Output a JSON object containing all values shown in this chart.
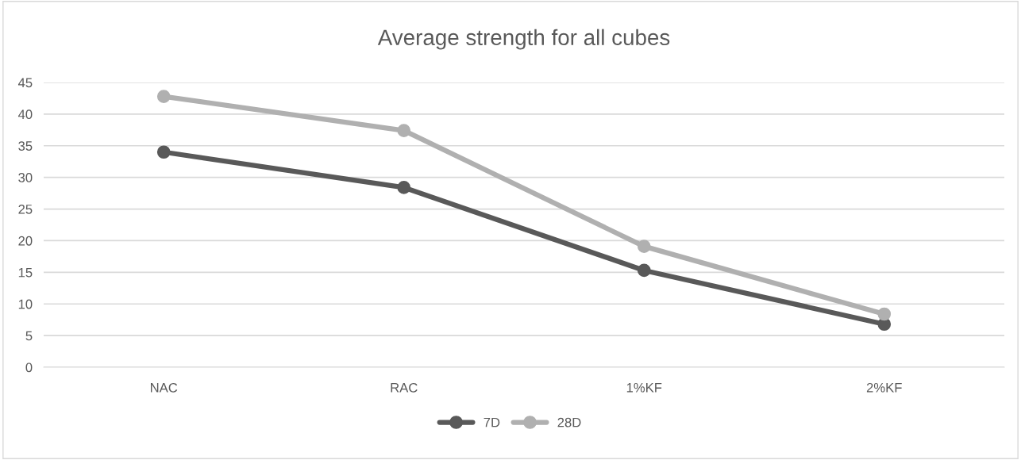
{
  "chart_data": {
    "type": "line",
    "title": "Average strength for all cubes",
    "categories": [
      "NAC",
      "RAC",
      "1%KF",
      "2%KF"
    ],
    "series": [
      {
        "name": "7D",
        "color": "#595959",
        "values": [
          34.0,
          28.4,
          15.3,
          6.8
        ]
      },
      {
        "name": "28D",
        "color": "#b0b0b0",
        "values": [
          42.8,
          37.4,
          19.1,
          8.4
        ]
      }
    ],
    "ylim": [
      0,
      45
    ],
    "yticks": [
      0,
      5,
      10,
      15,
      20,
      25,
      30,
      35,
      40,
      45
    ],
    "grid": "y",
    "legend": "bottom",
    "marker": "circle",
    "line_style": "solid"
  }
}
